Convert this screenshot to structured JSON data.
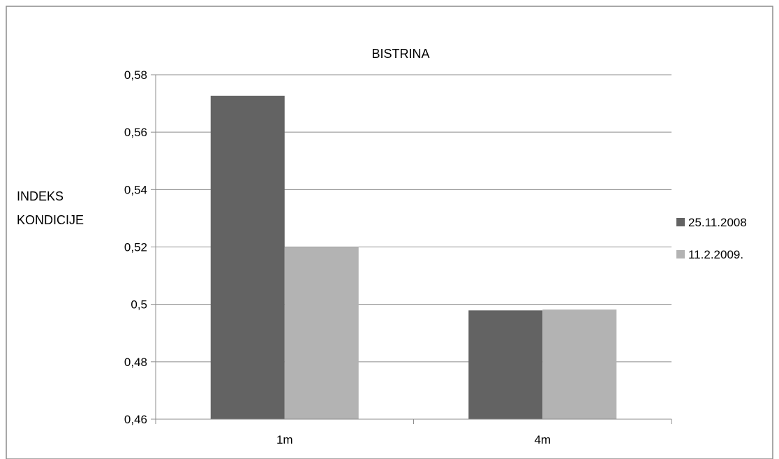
{
  "chart_data": {
    "type": "bar",
    "title": "BISTRINA",
    "xlabel": "",
    "ylabel_lines": [
      "INDEKS",
      "KONDICIJE"
    ],
    "categories": [
      "1m",
      "4m"
    ],
    "series": [
      {
        "name": "25.11.2008",
        "color": "#636363",
        "values": [
          0.5727,
          0.4979
        ]
      },
      {
        "name": "11.2.2009.",
        "color": "#b3b3b3",
        "values": [
          0.52,
          0.4982
        ]
      }
    ],
    "ylim": [
      0.46,
      0.58
    ],
    "yticks": [
      0.46,
      0.48,
      0.5,
      0.52,
      0.54,
      0.56,
      0.58
    ],
    "ytick_labels": [
      "0,46",
      "0,48",
      "0,5",
      "0,52",
      "0,54",
      "0,56",
      "0,58"
    ],
    "grid": true,
    "legend_position": "right"
  }
}
